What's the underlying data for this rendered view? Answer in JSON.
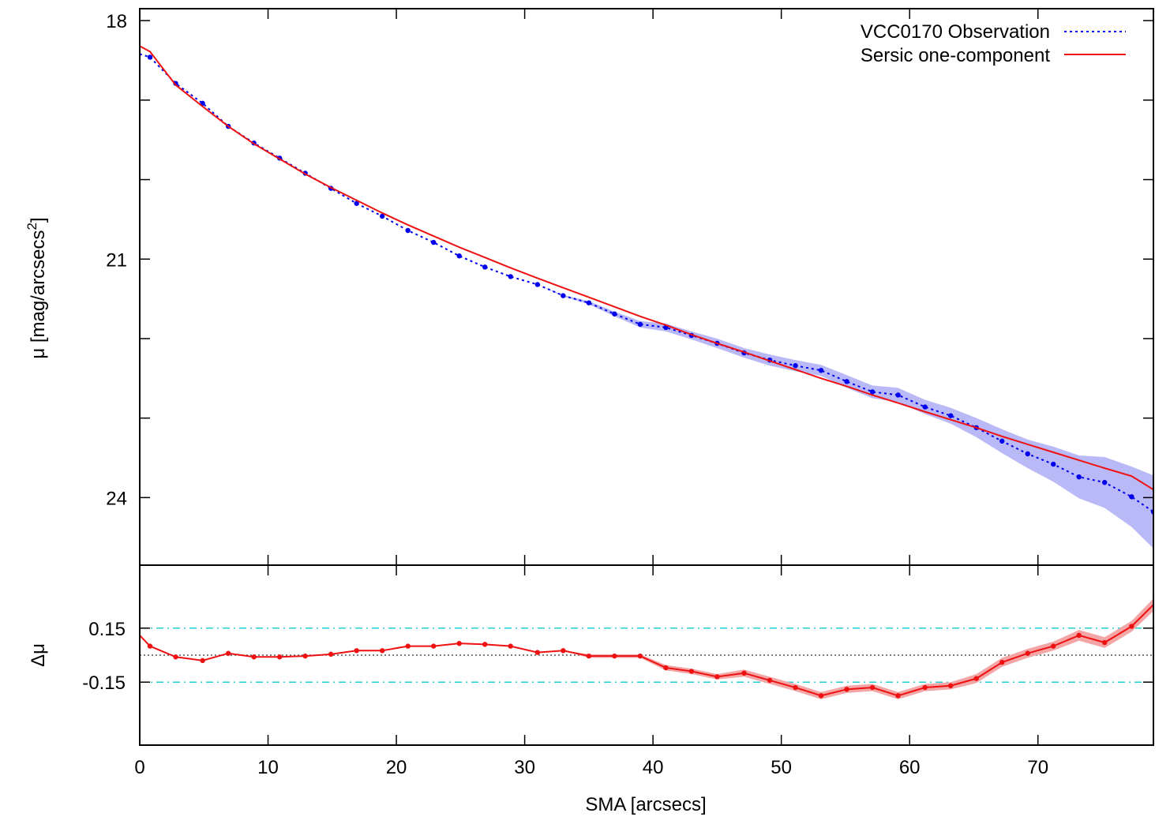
{
  "chart_data": [
    {
      "type": "line",
      "panel": "top",
      "ylabel": "μ [mag/arcsecs",
      "ylabel_sup": "2",
      "ylabel_close": "]",
      "xlim": [
        0,
        79
      ],
      "ylim": [
        24.85,
        17.85
      ],
      "y_inverted": true,
      "yticks": [
        18,
        21,
        24
      ],
      "y_minor_ticks": [
        19,
        20,
        22,
        23
      ],
      "legend_position": "top-right",
      "colors": {
        "observation": "#0000ee",
        "band": "#b9b9f7",
        "model": "#ee1111"
      },
      "series": [
        {
          "name": "VCC0170 Observation",
          "style": "dotted-with-points",
          "x": [
            0,
            0.8,
            2.8,
            4.9,
            6.9,
            8.9,
            10.9,
            12.9,
            14.9,
            16.9,
            18.9,
            20.9,
            22.9,
            24.9,
            26.9,
            28.9,
            31.0,
            33.0,
            35.0,
            37.0,
            39.0,
            41.0,
            43.0,
            45.0,
            47.1,
            49.1,
            51.1,
            53.1,
            55.1,
            57.1,
            59.1,
            61.2,
            63.2,
            65.2,
            67.2,
            69.2,
            71.2,
            73.2,
            75.2,
            77.3,
            79.0
          ],
          "y": [
            18.42,
            18.46,
            18.79,
            19.04,
            19.33,
            19.54,
            19.73,
            19.92,
            20.11,
            20.3,
            20.46,
            20.64,
            20.79,
            20.96,
            21.1,
            21.22,
            21.32,
            21.46,
            21.55,
            21.69,
            21.82,
            21.86,
            21.96,
            22.06,
            22.18,
            22.27,
            22.34,
            22.4,
            22.54,
            22.67,
            22.71,
            22.86,
            22.97,
            23.12,
            23.29,
            23.45,
            23.58,
            23.74,
            23.81,
            23.99,
            24.18
          ],
          "error_band": [
            0,
            0,
            0,
            0,
            0,
            0,
            0,
            0,
            0,
            0,
            0,
            0,
            0,
            0,
            0,
            0,
            0,
            0.01,
            0.02,
            0.03,
            0.04,
            0.05,
            0.05,
            0.06,
            0.06,
            0.07,
            0.07,
            0.07,
            0.08,
            0.08,
            0.09,
            0.09,
            0.1,
            0.12,
            0.15,
            0.18,
            0.22,
            0.27,
            0.32,
            0.38,
            0.46
          ]
        },
        {
          "name": "Sersic one-component",
          "style": "solid",
          "x": [
            0,
            0.8,
            2.8,
            4.9,
            6.9,
            8.9,
            10.9,
            12.9,
            14.9,
            16.9,
            18.9,
            20.9,
            22.9,
            24.9,
            26.9,
            28.9,
            31.0,
            33.0,
            35.0,
            37.0,
            39.0,
            41.0,
            43.0,
            45.0,
            47.1,
            49.1,
            51.1,
            53.1,
            55.1,
            57.1,
            59.1,
            61.2,
            63.2,
            65.2,
            67.2,
            69.2,
            71.2,
            73.2,
            75.2,
            77.3,
            79.0
          ],
          "y": [
            18.32,
            18.39,
            18.81,
            19.08,
            19.33,
            19.55,
            19.74,
            19.93,
            20.1,
            20.26,
            20.42,
            20.57,
            20.71,
            20.85,
            20.98,
            21.11,
            21.24,
            21.36,
            21.48,
            21.6,
            21.72,
            21.83,
            21.95,
            22.06,
            22.17,
            22.28,
            22.39,
            22.5,
            22.6,
            22.71,
            22.81,
            22.92,
            23.02,
            23.12,
            23.23,
            23.33,
            23.43,
            23.53,
            23.63,
            23.73,
            23.9
          ]
        }
      ]
    },
    {
      "type": "line",
      "panel": "bottom",
      "xlabel": "SMA [arcsecs]",
      "ylabel": "Δμ",
      "xlim": [
        0,
        79
      ],
      "ylim": [
        -0.5,
        0.5
      ],
      "xticks": [
        0,
        10,
        20,
        30,
        40,
        50,
        60,
        70
      ],
      "yticks": [
        0.15,
        -0.15
      ],
      "ytick_labels": [
        "0.15",
        "-0.15"
      ],
      "reference_lines": [
        {
          "y": 0.15,
          "style": "dash-dot",
          "color": "#20d0d0"
        },
        {
          "y": -0.15,
          "style": "dash-dot",
          "color": "#20d0d0"
        },
        {
          "y": 0,
          "style": "dotted",
          "color": "#555555"
        }
      ],
      "colors": {
        "residual": "#ee1111",
        "band": "#f4a6a6"
      },
      "series": [
        {
          "style": "solid-with-points",
          "x": [
            0,
            0.8,
            2.8,
            4.9,
            6.9,
            8.9,
            10.9,
            12.9,
            14.9,
            16.9,
            18.9,
            20.9,
            22.9,
            24.9,
            26.9,
            28.9,
            31.0,
            33.0,
            35.0,
            37.0,
            39.0,
            41.0,
            43.0,
            45.0,
            47.1,
            49.1,
            51.1,
            53.1,
            55.1,
            57.1,
            59.1,
            61.2,
            63.2,
            65.2,
            67.2,
            69.2,
            71.2,
            73.2,
            75.2,
            77.3,
            79.0
          ],
          "values": [
            0.11,
            0.05,
            -0.01,
            -0.03,
            0.01,
            -0.01,
            -0.01,
            -0.005,
            0.005,
            0.025,
            0.025,
            0.05,
            0.05,
            0.065,
            0.06,
            0.05,
            0.015,
            0.025,
            -0.005,
            -0.005,
            -0.005,
            -0.07,
            -0.09,
            -0.12,
            -0.1,
            -0.14,
            -0.18,
            -0.225,
            -0.19,
            -0.18,
            -0.225,
            -0.18,
            -0.17,
            -0.13,
            -0.04,
            0.01,
            0.05,
            0.11,
            0.07,
            0.16,
            0.28
          ],
          "error_band": [
            0,
            0,
            0,
            0,
            0,
            0,
            0,
            0,
            0,
            0,
            0,
            0,
            0,
            0,
            0,
            0,
            0,
            0,
            0.01,
            0.01,
            0.01,
            0.015,
            0.015,
            0.015,
            0.02,
            0.02,
            0.02,
            0.02,
            0.02,
            0.02,
            0.02,
            0.02,
            0.02,
            0.025,
            0.025,
            0.025,
            0.025,
            0.03,
            0.03,
            0.03,
            0.035
          ]
        }
      ]
    }
  ]
}
